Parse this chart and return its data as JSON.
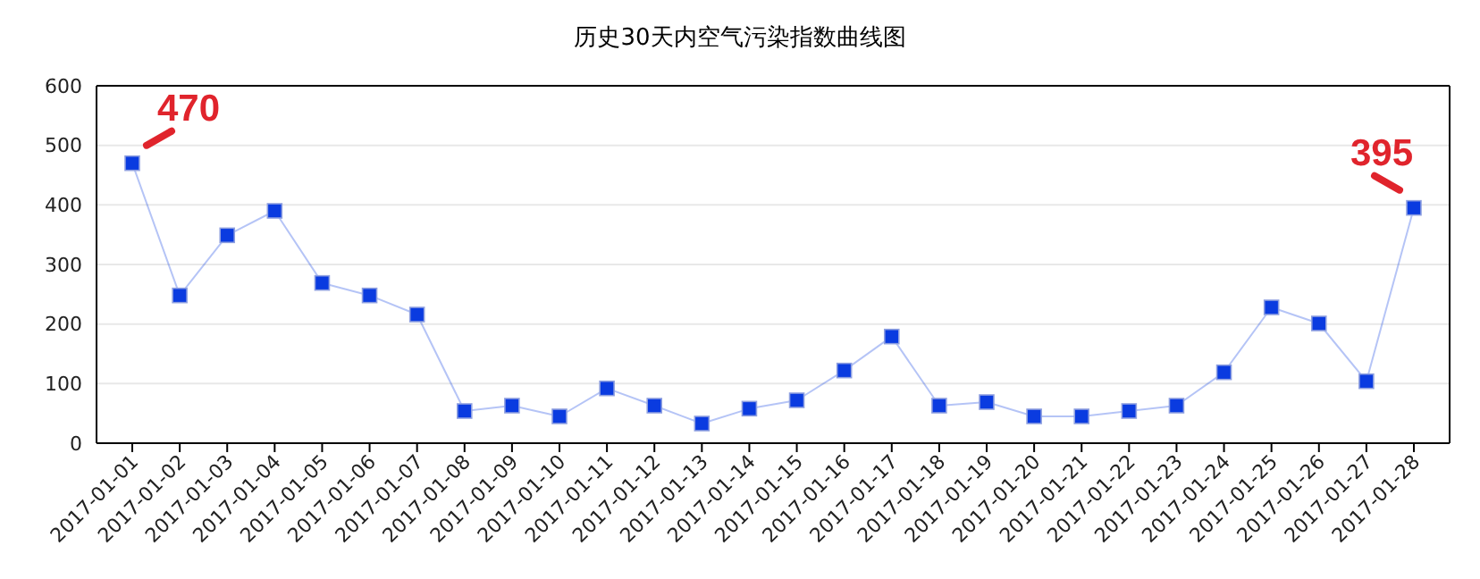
{
  "chart_data": {
    "type": "line",
    "title": "历史30天内空气污染指数曲线图",
    "categories": [
      "2017-01-01",
      "2017-01-02",
      "2017-01-03",
      "2017-01-04",
      "2017-01-05",
      "2017-01-06",
      "2017-01-07",
      "2017-01-08",
      "2017-01-09",
      "2017-01-10",
      "2017-01-11",
      "2017-01-12",
      "2017-01-13",
      "2017-01-14",
      "2017-01-15",
      "2017-01-16",
      "2017-01-17",
      "2017-01-18",
      "2017-01-19",
      "2017-01-20",
      "2017-01-21",
      "2017-01-22",
      "2017-01-23",
      "2017-01-24",
      "2017-01-25",
      "2017-01-26",
      "2017-01-27",
      "2017-01-28"
    ],
    "series": [
      {
        "color": "#0a3be0",
        "values": [
          470,
          248,
          349,
          390,
          269,
          248,
          216,
          54,
          63,
          45,
          92,
          63,
          33,
          58,
          72,
          122,
          179,
          63,
          69,
          45,
          45,
          54,
          63,
          119,
          228,
          201,
          104,
          395
        ]
      }
    ],
    "marker": "square",
    "ylim": [
      0,
      600
    ],
    "yticks": [
      0,
      100,
      200,
      300,
      400,
      500,
      600
    ],
    "grid": "y",
    "annotations": [
      {
        "text": "470",
        "x": "2017-01-01",
        "y": 470
      },
      {
        "text": "395",
        "x": "2017-01-28",
        "y": 395
      }
    ]
  }
}
